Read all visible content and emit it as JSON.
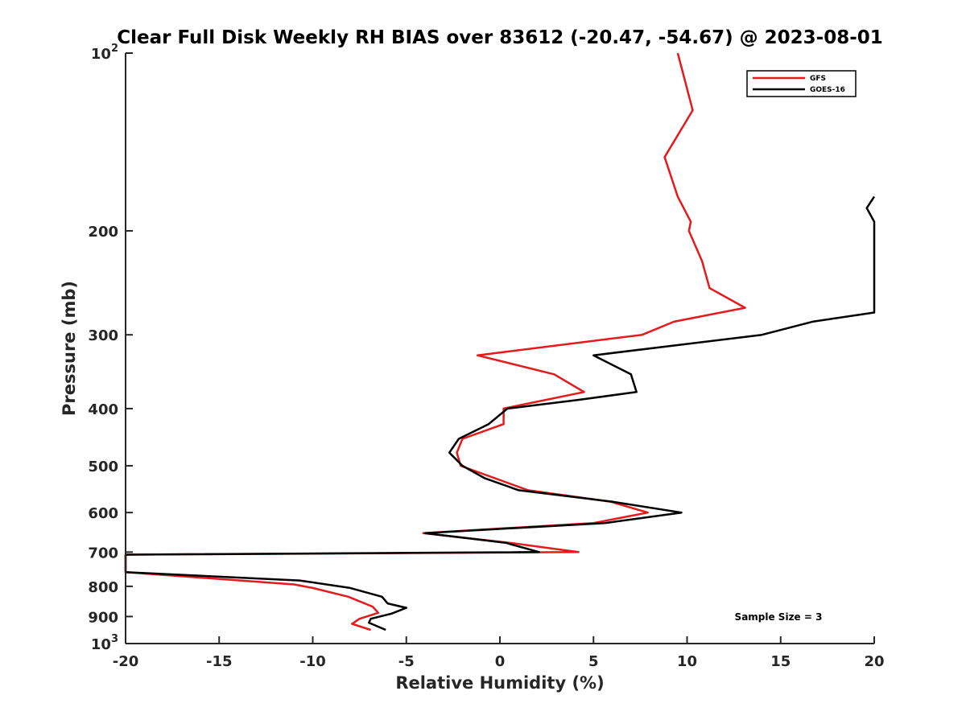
{
  "chart_data": {
    "type": "line",
    "title": "Clear Full Disk Weekly RH BIAS over 83612 (-20.47, -54.67) @ 2023-08-01",
    "xlabel": "Relative Humidity (%)",
    "ylabel": "Pressure (mb)",
    "xlim": [
      -20,
      20
    ],
    "ylim": [
      100,
      1000
    ],
    "y_scale": "log",
    "y_reversed": true,
    "x_ticks": [
      "-20",
      "-15",
      "-10",
      "-5",
      "0",
      "5",
      "10",
      "15",
      "20"
    ],
    "y_ticks": [
      {
        "value": 100,
        "base": "10",
        "exp": "2"
      },
      {
        "value": 200,
        "label": "200"
      },
      {
        "value": 300,
        "label": "300"
      },
      {
        "value": 400,
        "label": "400"
      },
      {
        "value": 500,
        "label": "500"
      },
      {
        "value": 600,
        "label": "600"
      },
      {
        "value": 700,
        "label": "700"
      },
      {
        "value": 800,
        "label": "800"
      },
      {
        "value": 900,
        "label": "900"
      },
      {
        "value": 1000,
        "base": "10",
        "exp": "3"
      }
    ],
    "grid": false,
    "legend_position": "top-right",
    "annotation": "Sample Size = 3",
    "series": [
      {
        "name": "GFS",
        "color": "#e41a1c",
        "points": [
          [
            9.5,
            100
          ],
          [
            10.3,
            125
          ],
          [
            8.8,
            150
          ],
          [
            9.5,
            175
          ],
          [
            10.2,
            193
          ],
          [
            10.1,
            200
          ],
          [
            10.8,
            225
          ],
          [
            11.2,
            250
          ],
          [
            13.1,
            270
          ],
          [
            9.3,
            285
          ],
          [
            7.6,
            300
          ],
          [
            -1.2,
            325
          ],
          [
            2.9,
            350
          ],
          [
            4.5,
            375
          ],
          [
            0.2,
            400
          ],
          [
            0.2,
            425
          ],
          [
            -2.0,
            450
          ],
          [
            -2.3,
            475
          ],
          [
            -2.1,
            500
          ],
          [
            1.5,
            550
          ],
          [
            5.9,
            575
          ],
          [
            7.9,
            600
          ],
          [
            5.0,
            625
          ],
          [
            -4.1,
            650
          ],
          [
            0.5,
            675
          ],
          [
            4.2,
            700
          ],
          [
            -20,
            707
          ],
          [
            -20,
            757
          ],
          [
            -11,
            794
          ],
          [
            -10,
            805
          ],
          [
            -8.1,
            833
          ],
          [
            -6.8,
            866
          ],
          [
            -6.5,
            887
          ],
          [
            -7.5,
            908
          ],
          [
            -7.9,
            926
          ],
          [
            -6.9,
            948
          ]
        ]
      },
      {
        "name": "GOES-16",
        "color": "#000000",
        "points": [
          [
            20,
            175
          ],
          [
            19.6,
            183
          ],
          [
            20,
            193
          ],
          [
            20,
            275
          ],
          [
            16.7,
            285
          ],
          [
            14.0,
            300
          ],
          [
            5.0,
            325
          ],
          [
            7.0,
            350
          ],
          [
            7.3,
            375
          ],
          [
            4.1,
            387
          ],
          [
            0.4,
            400
          ],
          [
            -0.6,
            425
          ],
          [
            -2.2,
            450
          ],
          [
            -2.7,
            475
          ],
          [
            -2.0,
            500
          ],
          [
            -0.8,
            525
          ],
          [
            1.0,
            550
          ],
          [
            6.0,
            575
          ],
          [
            9.7,
            600
          ],
          [
            5.6,
            625
          ],
          [
            -4.0,
            650
          ],
          [
            0.3,
            675
          ],
          [
            2.1,
            700
          ],
          [
            -20,
            707
          ],
          [
            -20,
            757
          ],
          [
            -10.7,
            782
          ],
          [
            -8.0,
            805
          ],
          [
            -6.3,
            833
          ],
          [
            -6.0,
            855
          ],
          [
            -5.0,
            870
          ],
          [
            -5.8,
            890
          ],
          [
            -6.9,
            908
          ],
          [
            -7.0,
            922
          ],
          [
            -6.1,
            948
          ]
        ]
      }
    ]
  }
}
